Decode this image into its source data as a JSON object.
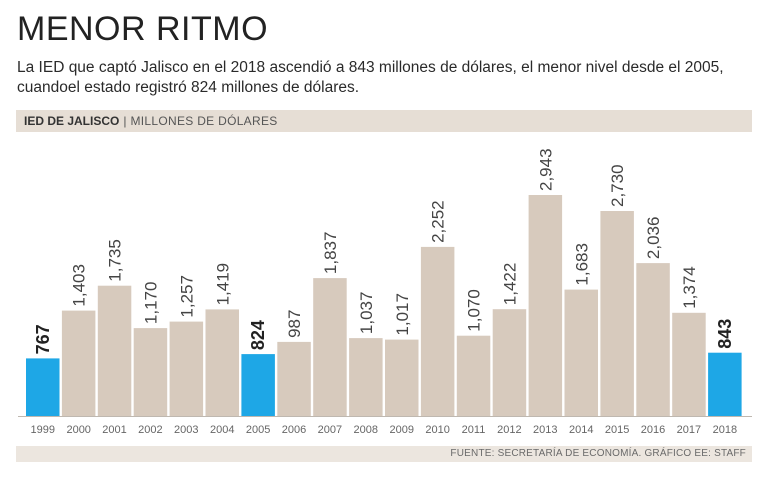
{
  "header": {
    "title": "MENOR RITMO",
    "subtitle": "La IED que captó Jalisco en el 2018 ascendió a 843 millones de dólares, el menor nivel desde el 2005, cuandoel estado registró 824 millones de dólares."
  },
  "label_bar": {
    "strong": "IED DE JALISCO",
    "separator": "|",
    "unit": "MILLONES DE DÓLARES"
  },
  "footer": {
    "source": "FUENTE: SECRETARÍA DE ECONOMÍA. GRÁFICO EE: STAFF"
  },
  "colors": {
    "bar": "#d7cabd",
    "highlight": "#1ea7e6",
    "label": "#444444",
    "axis": "#bfb8b0"
  },
  "chart_data": {
    "type": "bar",
    "title": "IED DE JALISCO",
    "ylabel": "MILLONES DE DÓLARES",
    "ylim": [
      0,
      3000
    ],
    "categories": [
      "1999",
      "2000",
      "2001",
      "2002",
      "2003",
      "2004",
      "2005",
      "2006",
      "2007",
      "2008",
      "2009",
      "2010",
      "2011",
      "2012",
      "2013",
      "2014",
      "2015",
      "2016",
      "2017",
      "2018"
    ],
    "values": [
      767,
      1403,
      1735,
      1170,
      1257,
      1419,
      824,
      987,
      1837,
      1037,
      1017,
      2252,
      1070,
      1422,
      2943,
      1683,
      2730,
      2036,
      1374,
      843
    ],
    "value_labels": [
      "767",
      "1,403",
      "1,735",
      "1,170",
      "1,257",
      "1,419",
      "824",
      "987",
      "1,837",
      "1,037",
      "1,017",
      "2,252",
      "1,070",
      "1,422",
      "2,943",
      "1,683",
      "2,730",
      "2,036",
      "1,374",
      "843"
    ],
    "highlighted": [
      "1999",
      "2005",
      "2018"
    ]
  }
}
